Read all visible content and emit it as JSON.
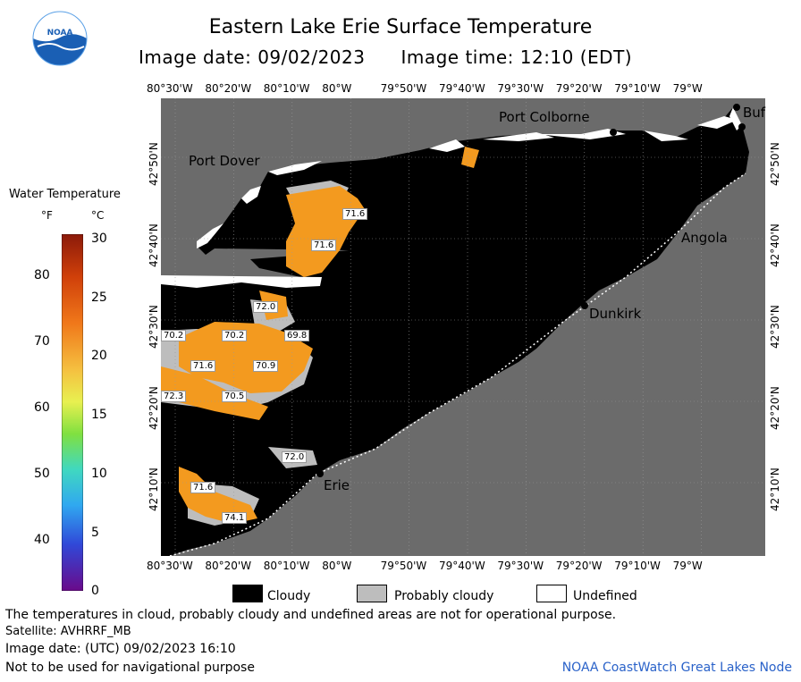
{
  "header": {
    "title": "Eastern Lake Erie Surface Temperature",
    "image_date": "Image date: 09/02/2023",
    "image_time": "Image time: 12:10 (EDT)"
  },
  "map": {
    "lon_labels": [
      "80°30'W",
      "80°20'W",
      "80°10'W",
      "80°W",
      "79°50'W",
      "79°40'W",
      "79°30'W",
      "79°20'W",
      "79°10'W",
      "79°W"
    ],
    "lat_labels": [
      "42°50'N",
      "42°40'N",
      "42°30'N",
      "42°20'N",
      "42°10'N"
    ],
    "cities": {
      "port_colborne": "Port Colborne",
      "port_dover": "Port Dover",
      "buffalo": "Buf",
      "angola": "Angola",
      "dunkirk": "Dunkirk",
      "erie": "Erie"
    },
    "temp_labels": [
      "71.6",
      "71.6",
      "72.0",
      "70.2",
      "69.8",
      "70.2",
      "71.6",
      "70.9",
      "72.3",
      "70.5",
      "72.0",
      "71.6",
      "74.1"
    ],
    "colors": {
      "land": "#6b6b6b",
      "water": "#000000",
      "warm": "#f39a1f",
      "cloud_probable": "#bdbdbd",
      "undefined": "#ffffff"
    }
  },
  "legend": {
    "title": "Water Temperature",
    "unit_f": "°F",
    "unit_c": "°C",
    "ticks_f": [
      "80",
      "70",
      "60",
      "50",
      "40"
    ],
    "ticks_c": [
      "30",
      "25",
      "20",
      "15",
      "10",
      "5",
      "0"
    ]
  },
  "key": {
    "cloudy": "Cloudy",
    "probably_cloudy": "Probably cloudy",
    "undefined": "Undefined"
  },
  "footer": {
    "disclaimer": "The temperatures in cloud, probably cloudy and undefined areas are not for operational purpose.",
    "satellite": "Satellite: AVHRRF_MB",
    "utc_date": "Image date: (UTC) 09/02/2023  16:10",
    "nav_warning": "Not to be used for navigational purpose",
    "node": "NOAA CoastWatch Great Lakes Node"
  },
  "logo_text": "NOAA"
}
